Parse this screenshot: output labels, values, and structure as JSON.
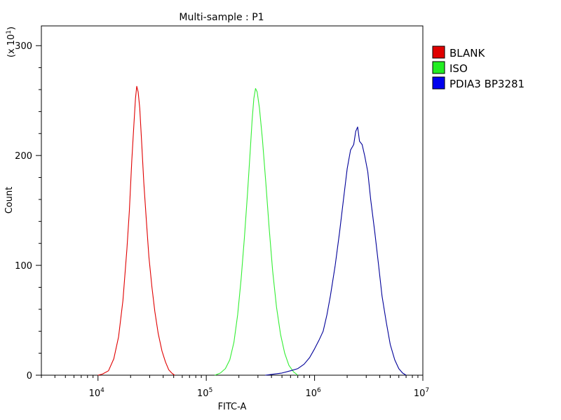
{
  "chart_data": {
    "type": "line",
    "title": "Multi-sample : P1",
    "xlabel": "FITC-A",
    "ylabel": "Count",
    "y_multiplier_label": "(x 10",
    "y_multiplier_exp": "1",
    "y_multiplier_close": ")",
    "xscale": "log",
    "xlim": [
      3000,
      10000000
    ],
    "ylim": [
      0,
      318
    ],
    "x_ticks": [
      {
        "base": "10",
        "exp": "4",
        "value": 10000
      },
      {
        "base": "10",
        "exp": "5",
        "value": 100000
      },
      {
        "base": "10",
        "exp": "6",
        "value": 1000000
      },
      {
        "base": "10",
        "exp": "7",
        "value": 10000000
      }
    ],
    "y_ticks": [
      {
        "label": "0",
        "value": 0
      },
      {
        "label": "100",
        "value": 100
      },
      {
        "label": "200",
        "value": 200
      },
      {
        "label": "300",
        "value": 300
      }
    ],
    "legend_position": "right",
    "series": [
      {
        "name": "BLANK",
        "color": "#e00000",
        "legend_color": "#e00000",
        "points": [
          [
            10000,
            0
          ],
          [
            11000,
            1
          ],
          [
            12500,
            4
          ],
          [
            14000,
            15
          ],
          [
            15500,
            35
          ],
          [
            17000,
            68
          ],
          [
            18500,
            115
          ],
          [
            19500,
            150
          ],
          [
            20500,
            195
          ],
          [
            21500,
            230
          ],
          [
            22200,
            252
          ],
          [
            22800,
            263
          ],
          [
            23500,
            258
          ],
          [
            24300,
            243
          ],
          [
            25300,
            212
          ],
          [
            26500,
            175
          ],
          [
            28000,
            140
          ],
          [
            29500,
            108
          ],
          [
            31500,
            80
          ],
          [
            33500,
            58
          ],
          [
            36000,
            38
          ],
          [
            39000,
            22
          ],
          [
            42000,
            12
          ],
          [
            45000,
            5
          ],
          [
            48000,
            2
          ],
          [
            51000,
            0
          ]
        ]
      },
      {
        "name": "ISO",
        "color": "#33ee33",
        "legend_color": "#22ee22",
        "points": [
          [
            120000,
            0
          ],
          [
            135000,
            2
          ],
          [
            150000,
            6
          ],
          [
            165000,
            14
          ],
          [
            180000,
            30
          ],
          [
            195000,
            55
          ],
          [
            210000,
            88
          ],
          [
            225000,
            125
          ],
          [
            240000,
            165
          ],
          [
            255000,
            205
          ],
          [
            265000,
            232
          ],
          [
            275000,
            252
          ],
          [
            285000,
            261
          ],
          [
            295000,
            258
          ],
          [
            310000,
            243
          ],
          [
            330000,
            215
          ],
          [
            355000,
            175
          ],
          [
            380000,
            135
          ],
          [
            410000,
            95
          ],
          [
            445000,
            62
          ],
          [
            485000,
            37
          ],
          [
            530000,
            20
          ],
          [
            580000,
            9
          ],
          [
            640000,
            3
          ],
          [
            700000,
            0
          ]
        ]
      },
      {
        "name": "PDIA3 BP3281",
        "color": "#000099",
        "legend_color": "#0000ee",
        "points": [
          [
            350000,
            0
          ],
          [
            420000,
            1
          ],
          [
            500000,
            2
          ],
          [
            600000,
            4
          ],
          [
            700000,
            6
          ],
          [
            800000,
            10
          ],
          [
            900000,
            16
          ],
          [
            1000000,
            24
          ],
          [
            1100000,
            32
          ],
          [
            1200000,
            40
          ],
          [
            1300000,
            55
          ],
          [
            1400000,
            72
          ],
          [
            1550000,
            100
          ],
          [
            1700000,
            130
          ],
          [
            1850000,
            160
          ],
          [
            2000000,
            188
          ],
          [
            2150000,
            205
          ],
          [
            2300000,
            210
          ],
          [
            2400000,
            222
          ],
          [
            2500000,
            226
          ],
          [
            2600000,
            213
          ],
          [
            2750000,
            210
          ],
          [
            2900000,
            200
          ],
          [
            3100000,
            185
          ],
          [
            3300000,
            160
          ],
          [
            3600000,
            130
          ],
          [
            3900000,
            100
          ],
          [
            4200000,
            72
          ],
          [
            4600000,
            48
          ],
          [
            5000000,
            28
          ],
          [
            5500000,
            14
          ],
          [
            6000000,
            6
          ],
          [
            6500000,
            2
          ],
          [
            7000000,
            0
          ]
        ]
      }
    ]
  }
}
